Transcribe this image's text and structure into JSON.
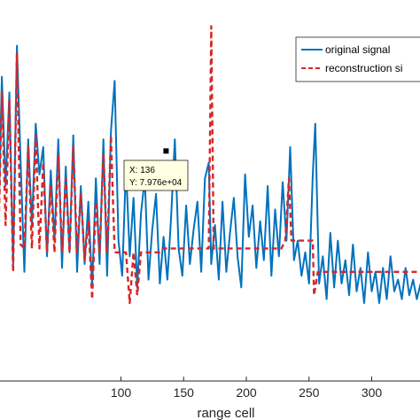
{
  "chart_data": {
    "type": "line",
    "xlabel": "range cell",
    "ylabel": "",
    "title": "",
    "xlim": [
      0,
      340
    ],
    "ylim": [
      0,
      10
    ],
    "xticks": [
      100,
      150,
      200,
      250,
      300
    ],
    "xtick_labels": [
      "100",
      "150",
      "200",
      "250",
      "300"
    ],
    "grid": false,
    "legend_position": "top-right",
    "series": [
      {
        "name": "original signal",
        "color": "#0072BD",
        "style": "solid",
        "points": [
          [
            2,
            3.5
          ],
          [
            5,
            7.8
          ],
          [
            8,
            5.0
          ],
          [
            11,
            7.4
          ],
          [
            14,
            3.0
          ],
          [
            17,
            8.6
          ],
          [
            20,
            5.6
          ],
          [
            23,
            2.8
          ],
          [
            26,
            6.2
          ],
          [
            29,
            4.0
          ],
          [
            32,
            6.6
          ],
          [
            35,
            5.3
          ],
          [
            38,
            6.0
          ],
          [
            41,
            3.2
          ],
          [
            44,
            5.4
          ],
          [
            47,
            3.6
          ],
          [
            50,
            6.2
          ],
          [
            53,
            2.9
          ],
          [
            56,
            5.5
          ],
          [
            59,
            3.3
          ],
          [
            62,
            6.3
          ],
          [
            65,
            2.8
          ],
          [
            68,
            5.0
          ],
          [
            71,
            3.0
          ],
          [
            74,
            4.6
          ],
          [
            77,
            2.4
          ],
          [
            80,
            5.2
          ],
          [
            83,
            3.0
          ],
          [
            86,
            6.2
          ],
          [
            89,
            2.7
          ],
          [
            92,
            6.4
          ],
          [
            95,
            7.7
          ],
          [
            98,
            3.6
          ],
          [
            101,
            2.7
          ],
          [
            104,
            5.5
          ],
          [
            107,
            3.2
          ],
          [
            110,
            4.7
          ],
          [
            113,
            2.4
          ],
          [
            116,
            4.3
          ],
          [
            119,
            5.2
          ],
          [
            122,
            2.6
          ],
          [
            125,
            3.9
          ],
          [
            128,
            4.8
          ],
          [
            131,
            2.5
          ],
          [
            134,
            3.7
          ],
          [
            137,
            2.6
          ],
          [
            140,
            4.2
          ],
          [
            143,
            6.2
          ],
          [
            146,
            3.4
          ],
          [
            149,
            2.7
          ],
          [
            152,
            4.5
          ],
          [
            155,
            3.0
          ],
          [
            158,
            3.9
          ],
          [
            161,
            4.6
          ],
          [
            164,
            2.8
          ],
          [
            167,
            5.2
          ],
          [
            170,
            5.6
          ],
          [
            172,
            3.0
          ],
          [
            175,
            4.0
          ],
          [
            178,
            2.6
          ],
          [
            181,
            4.6
          ],
          [
            184,
            2.8
          ],
          [
            187,
            3.8
          ],
          [
            190,
            4.7
          ],
          [
            193,
            3.2
          ],
          [
            196,
            2.4
          ],
          [
            199,
            5.3
          ],
          [
            202,
            3.7
          ],
          [
            205,
            4.5
          ],
          [
            208,
            2.9
          ],
          [
            211,
            4.1
          ],
          [
            214,
            3.1
          ],
          [
            217,
            5.0
          ],
          [
            220,
            2.7
          ],
          [
            223,
            4.4
          ],
          [
            226,
            3.2
          ],
          [
            229,
            5.1
          ],
          [
            232,
            3.6
          ],
          [
            235,
            6.0
          ],
          [
            238,
            3.1
          ],
          [
            241,
            3.6
          ],
          [
            244,
            2.7
          ],
          [
            247,
            3.3
          ],
          [
            250,
            2.5
          ],
          [
            253,
            5.3
          ],
          [
            255,
            6.6
          ],
          [
            258,
            2.5
          ],
          [
            261,
            3.2
          ],
          [
            264,
            2.1
          ],
          [
            267,
            3.8
          ],
          [
            270,
            2.4
          ],
          [
            273,
            3.6
          ],
          [
            276,
            2.5
          ],
          [
            279,
            3.1
          ],
          [
            282,
            2.2
          ],
          [
            285,
            3.5
          ],
          [
            288,
            2.3
          ],
          [
            291,
            2.9
          ],
          [
            294,
            2.0
          ],
          [
            297,
            3.3
          ],
          [
            300,
            2.3
          ],
          [
            303,
            2.8
          ],
          [
            306,
            2.0
          ],
          [
            309,
            2.9
          ],
          [
            312,
            2.1
          ],
          [
            315,
            3.2
          ],
          [
            318,
            2.3
          ],
          [
            321,
            2.6
          ],
          [
            324,
            2.1
          ],
          [
            327,
            2.9
          ],
          [
            330,
            2.2
          ],
          [
            333,
            2.6
          ],
          [
            336,
            2.1
          ],
          [
            339,
            2.5
          ]
        ]
      },
      {
        "name": "reconstruction si",
        "color": "#D62728",
        "style": "dashed",
        "points": [
          [
            2,
            3.2
          ],
          [
            5,
            7.4
          ],
          [
            8,
            4.0
          ],
          [
            11,
            7.2
          ],
          [
            14,
            2.8
          ],
          [
            17,
            8.4
          ],
          [
            20,
            3.5
          ],
          [
            23,
            3.4
          ],
          [
            26,
            6.0
          ],
          [
            29,
            3.4
          ],
          [
            32,
            6.3
          ],
          [
            35,
            3.4
          ],
          [
            38,
            5.6
          ],
          [
            41,
            3.3
          ],
          [
            44,
            5.0
          ],
          [
            47,
            3.3
          ],
          [
            50,
            5.8
          ],
          [
            53,
            3.3
          ],
          [
            56,
            5.2
          ],
          [
            59,
            3.3
          ],
          [
            62,
            6.0
          ],
          [
            65,
            3.3
          ],
          [
            68,
            4.8
          ],
          [
            71,
            3.1
          ],
          [
            74,
            4.1
          ],
          [
            77,
            2.1
          ],
          [
            80,
            4.6
          ],
          [
            83,
            3.3
          ],
          [
            86,
            5.8
          ],
          [
            89,
            3.3
          ],
          [
            92,
            6.3
          ],
          [
            95,
            3.3
          ],
          [
            98,
            3.3
          ],
          [
            101,
            3.3
          ],
          [
            104,
            3.3
          ],
          [
            107,
            2.0
          ],
          [
            110,
            3.3
          ],
          [
            113,
            2.2
          ],
          [
            116,
            3.3
          ],
          [
            119,
            3.3
          ],
          [
            122,
            3.3
          ],
          [
            125,
            3.3
          ],
          [
            128,
            3.3
          ],
          [
            131,
            3.3
          ],
          [
            134,
            3.4
          ],
          [
            137,
            3.4
          ],
          [
            140,
            3.4
          ],
          [
            143,
            3.4
          ],
          [
            146,
            3.4
          ],
          [
            149,
            3.4
          ],
          [
            152,
            3.4
          ],
          [
            155,
            3.4
          ],
          [
            158,
            3.4
          ],
          [
            161,
            3.4
          ],
          [
            164,
            3.4
          ],
          [
            167,
            3.4
          ],
          [
            170,
            3.4
          ],
          [
            172,
            9.1
          ],
          [
            174,
            3.4
          ],
          [
            177,
            3.4
          ],
          [
            180,
            3.4
          ],
          [
            183,
            3.4
          ],
          [
            186,
            3.4
          ],
          [
            189,
            3.4
          ],
          [
            192,
            3.4
          ],
          [
            195,
            3.4
          ],
          [
            198,
            3.4
          ],
          [
            201,
            3.4
          ],
          [
            204,
            3.4
          ],
          [
            207,
            3.4
          ],
          [
            210,
            3.4
          ],
          [
            213,
            3.4
          ],
          [
            216,
            3.4
          ],
          [
            219,
            3.4
          ],
          [
            222,
            3.4
          ],
          [
            225,
            3.4
          ],
          [
            228,
            3.4
          ],
          [
            231,
            3.6
          ],
          [
            234,
            5.2
          ],
          [
            236,
            3.6
          ],
          [
            239,
            3.6
          ],
          [
            242,
            3.6
          ],
          [
            245,
            3.6
          ],
          [
            248,
            3.6
          ],
          [
            251,
            3.6
          ],
          [
            253,
            3.6
          ],
          [
            254,
            2.2
          ],
          [
            257,
            2.8
          ],
          [
            260,
            2.8
          ],
          [
            263,
            2.8
          ],
          [
            266,
            2.8
          ],
          [
            269,
            2.8
          ],
          [
            272,
            2.8
          ],
          [
            275,
            2.8
          ],
          [
            278,
            2.8
          ],
          [
            281,
            2.8
          ],
          [
            284,
            2.8
          ],
          [
            287,
            2.8
          ],
          [
            290,
            2.8
          ],
          [
            293,
            2.8
          ],
          [
            296,
            2.8
          ],
          [
            299,
            2.8
          ],
          [
            302,
            2.8
          ],
          [
            305,
            2.8
          ],
          [
            308,
            2.8
          ],
          [
            311,
            2.8
          ],
          [
            314,
            2.8
          ],
          [
            317,
            2.8
          ],
          [
            320,
            2.8
          ],
          [
            323,
            2.8
          ],
          [
            326,
            2.8
          ],
          [
            329,
            2.8
          ],
          [
            332,
            2.8
          ],
          [
            335,
            2.8
          ],
          [
            339,
            2.8
          ]
        ]
      }
    ],
    "datatip": {
      "x": 136,
      "y": 79760.0,
      "x_label": "X: 136",
      "y_label": "Y: 7.976e+04",
      "plot_y": 5.9
    }
  }
}
